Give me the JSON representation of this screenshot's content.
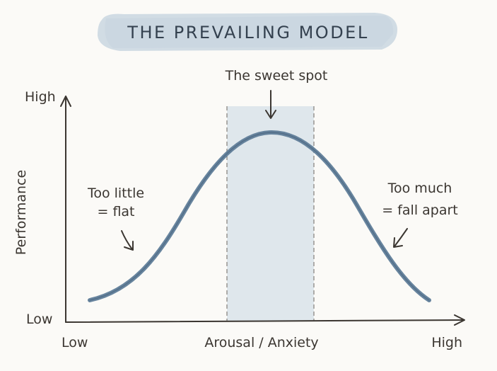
{
  "title": "THE PREVAILING MODEL",
  "peak_label": "The sweet spot",
  "y_axis": {
    "label": "Performance",
    "high_label": "High",
    "low_label": "Low"
  },
  "x_axis": {
    "label": "Arousal / Anxiety",
    "low_label": "Low",
    "high_label": "High"
  },
  "annotations": {
    "left_line1": "Too little",
    "left_line2": "= flat",
    "right_line1": "Too much",
    "right_line2": "= fall apart"
  },
  "colors": {
    "background": "#fbfaf7",
    "title_wash": "#c9d6e0",
    "ink": "#3b3631",
    "curve": "#5f7d99",
    "sweet_spot_band": "#d6e0e8"
  }
}
